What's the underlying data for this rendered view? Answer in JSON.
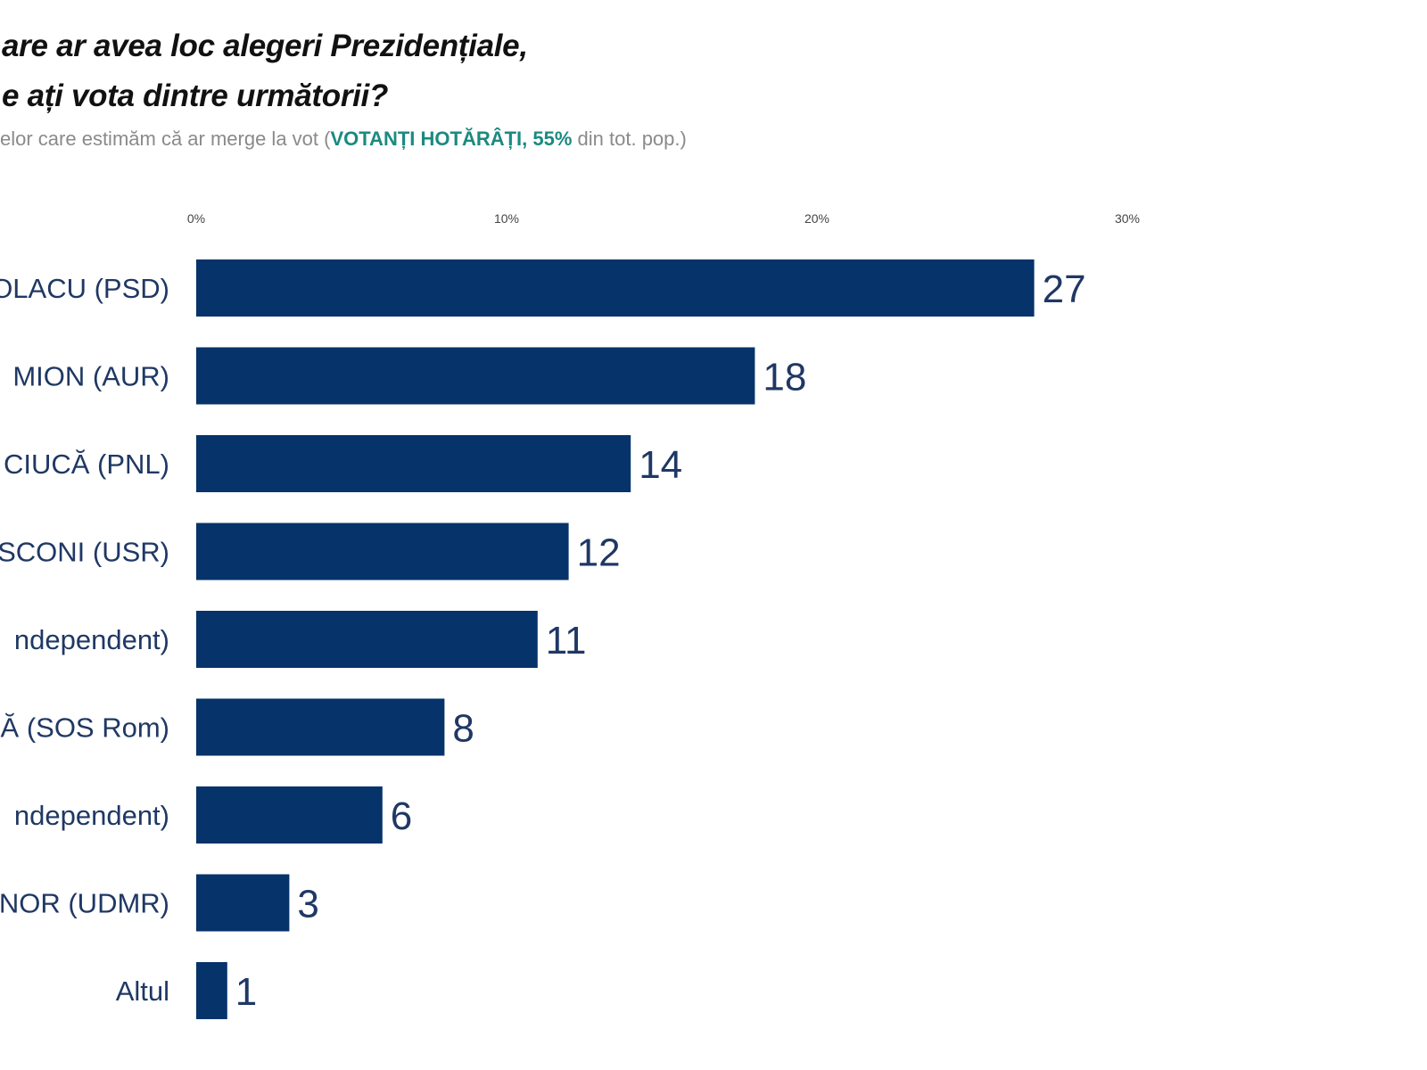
{
  "chart_data": {
    "type": "bar",
    "orientation": "horizontal",
    "title_lines": [
      "are ar avea loc alegeri Prezidențiale,",
      "e ați vota dintre următorii?"
    ],
    "subtitle": {
      "prefix": "elor care estimăm că ar merge la vot (",
      "highlight": "VOTANȚI HOTĂRÂȚI, 55%",
      "suffix": " din tot. pop.)"
    },
    "x_ticks": [
      "0%",
      "10%",
      "20%",
      "30%",
      "4"
    ],
    "x_tick_values": [
      0,
      10,
      20,
      30,
      40
    ],
    "xlim": [
      0,
      40
    ],
    "categories": [
      "OLACU (PSD)",
      "MION (AUR)",
      "CIUCĂ (PNL)",
      "SCONI (USR)",
      "ndependent)",
      "Ă (SOS Rom)",
      "ndependent)",
      "NOR (UDMR)",
      "Altul"
    ],
    "values": [
      27,
      18,
      14,
      12,
      11,
      8,
      6,
      3,
      1
    ],
    "bar_color": "#06336a",
    "label_color": "#1f3864",
    "highlight_color": "#1b8a80",
    "grid": false
  }
}
